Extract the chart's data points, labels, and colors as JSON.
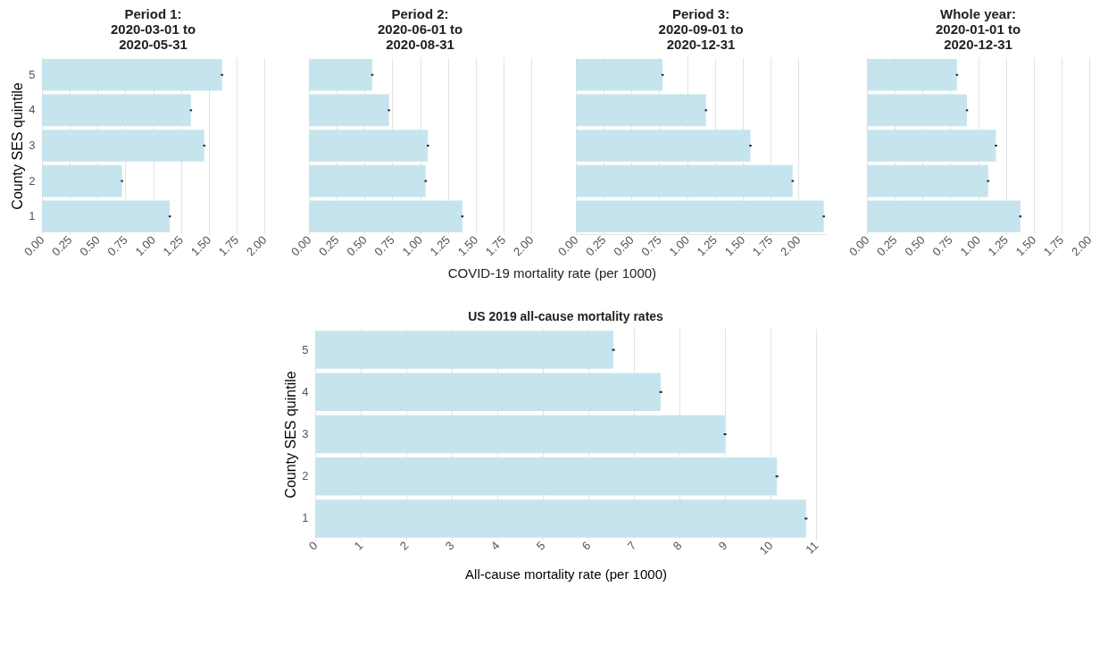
{
  "chart_data": [
    {
      "type": "bar",
      "orientation": "horizontal",
      "title": "Period 1:\n2020-03-01 to\n2020-05-31",
      "ylabel": "County SES quintile",
      "categories": [
        "5",
        "4",
        "3",
        "2",
        "1"
      ],
      "values": [
        1.62,
        1.34,
        1.46,
        0.72,
        1.15
      ],
      "errors": [
        0.01,
        0.01,
        0.01,
        0.01,
        0.01
      ],
      "color": "#c6e4ed",
      "xlim": [
        0,
        2
      ],
      "xticks": [
        {
          "value": 0,
          "label": "0.00"
        },
        0.25,
        {
          "value": 0.5,
          "label": "0.50"
        },
        0.75,
        {
          "value": 1,
          "label": "1.00"
        },
        1.25,
        {
          "value": 1.5,
          "label": "1.50"
        },
        1.75,
        {
          "value": 2,
          "label": "2.00"
        }
      ],
      "grid": "x"
    },
    {
      "type": "bar",
      "orientation": "horizontal",
      "title": "Period 2:\n2020-06-01 to\n2020-08-31",
      "xlabel": "COVID-19 mortality rate (per 1000)",
      "categories": [
        "5",
        "4",
        "3",
        "2",
        "1"
      ],
      "values": [
        0.57,
        0.72,
        1.07,
        1.05,
        1.38
      ],
      "errors": [
        0.01,
        0.01,
        0.01,
        0.01,
        0.01
      ],
      "color": "#c6e4ed",
      "xlim": [
        0,
        2
      ],
      "xticks": [
        {
          "value": 0,
          "label": "0.00"
        },
        0.25,
        {
          "value": 0.5,
          "label": "0.50"
        },
        0.75,
        {
          "value": 1,
          "label": "1.00"
        },
        1.25,
        {
          "value": 1.5,
          "label": "1.50"
        },
        1.75,
        {
          "value": 2,
          "label": "2.00"
        }
      ],
      "grid": "x",
      "tick_labels": "x"
    },
    {
      "type": "bar",
      "orientation": "horizontal",
      "title": "Period 3:\n2020-09-01 to\n2020-12-31",
      "categories": [
        "5",
        "4",
        "3",
        "2",
        "1"
      ],
      "values": [
        0.78,
        1.17,
        1.57,
        1.95,
        2.23
      ],
      "errors": [
        0.01,
        0.01,
        0.01,
        0.01,
        0.01
      ],
      "color": "#c6e4ed",
      "xlim": [
        0,
        2.25
      ],
      "xticks": [
        {
          "value": 0,
          "label": "0.00"
        },
        0.25,
        {
          "value": 0.5,
          "label": "0.50"
        },
        0.75,
        {
          "value": 1,
          "label": "1.00"
        },
        1.25,
        {
          "value": 1.5,
          "label": "1.50"
        },
        1.75,
        {
          "value": 2,
          "label": "2.00"
        }
      ],
      "grid": "x",
      "tick_labels": "x"
    },
    {
      "type": "bar",
      "orientation": "horizontal",
      "title": "Whole year:\n2020-01-01 to\n2020-12-31",
      "categories": [
        "5",
        "4",
        "3",
        "2",
        "1"
      ],
      "values": [
        0.81,
        0.9,
        1.16,
        1.09,
        1.38
      ],
      "errors": [
        0.01,
        0.01,
        0.01,
        0.01,
        0.01
      ],
      "color": "#c6e4ed",
      "xlim": [
        0,
        2
      ],
      "xticks": [
        {
          "value": 0,
          "label": "0.00"
        },
        0.25,
        {
          "value": 0.5,
          "label": "0.50"
        },
        0.75,
        {
          "value": 1,
          "label": "1.00"
        },
        1.25,
        {
          "value": 1.5,
          "label": "1.50"
        },
        1.75,
        {
          "value": 2,
          "label": "2.00"
        }
      ],
      "grid": "x",
      "tick_labels": "x"
    },
    {
      "type": "bar",
      "orientation": "horizontal",
      "title": "US 2019 all-cause mortality rates",
      "ylabel": "County SES quintile",
      "xlabel": "All-cause mortality rate (per 1000)",
      "categories": [
        "5",
        "4",
        "3",
        "2",
        "1"
      ],
      "values": [
        6.55,
        7.59,
        9.0,
        10.14,
        10.78
      ],
      "errors": [
        0.03,
        0.03,
        0.03,
        0.03,
        0.03
      ],
      "color": "#c6e4ed",
      "xlim": [
        0,
        11
      ],
      "xticks": [
        0,
        1,
        2,
        3,
        4,
        5,
        6,
        7,
        8,
        9,
        10,
        11
      ],
      "grid": "x"
    }
  ]
}
